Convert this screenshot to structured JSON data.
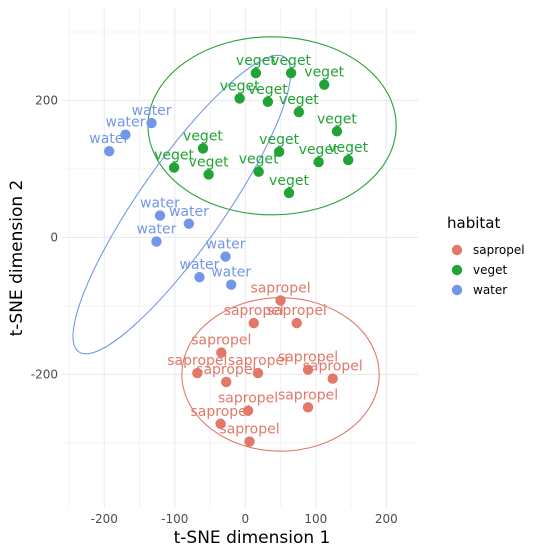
{
  "chart_data": {
    "type": "scatter",
    "xlabel": "t-SNE dimension 1",
    "ylabel": "t-SNE dimension 2",
    "xlim": [
      -260,
      245
    ],
    "ylim": [
      -395,
      335
    ],
    "xticks": [
      -200,
      -100,
      0,
      100,
      200
    ],
    "yticks": [
      -200,
      0,
      200
    ],
    "grid": true,
    "legend_title": "habitat",
    "legend_position": "right",
    "series": [
      {
        "name": "sapropel",
        "color": "#E27869",
        "points": [
          {
            "x": 50,
            "y": -92
          },
          {
            "x": 12,
            "y": -125
          },
          {
            "x": 73,
            "y": -125
          },
          {
            "x": -34,
            "y": -168
          },
          {
            "x": 18,
            "y": -198
          },
          {
            "x": -68,
            "y": -198
          },
          {
            "x": -27,
            "y": -211
          },
          {
            "x": 89,
            "y": -193
          },
          {
            "x": 124,
            "y": -206
          },
          {
            "x": 89,
            "y": -248
          },
          {
            "x": 4,
            "y": -253
          },
          {
            "x": -35,
            "y": -272
          },
          {
            "x": 6,
            "y": -298
          }
        ],
        "ellipse": {
          "cx": 50,
          "cy": -200,
          "rx": 140,
          "ry": 112,
          "angle": 0
        }
      },
      {
        "name": "veget",
        "color": "#22A336",
        "points": [
          {
            "x": 15,
            "y": 240
          },
          {
            "x": 65,
            "y": 240
          },
          {
            "x": 112,
            "y": 223
          },
          {
            "x": -8,
            "y": 203
          },
          {
            "x": 32,
            "y": 198
          },
          {
            "x": 76,
            "y": 183
          },
          {
            "x": 130,
            "y": 155
          },
          {
            "x": -60,
            "y": 130
          },
          {
            "x": 48,
            "y": 125
          },
          {
            "x": 104,
            "y": 110
          },
          {
            "x": 146,
            "y": 113
          },
          {
            "x": -101,
            "y": 102
          },
          {
            "x": -52,
            "y": 92
          },
          {
            "x": 19,
            "y": 96
          },
          {
            "x": 62,
            "y": 65
          }
        ],
        "ellipse": {
          "cx": 38,
          "cy": 163,
          "rx": 176,
          "ry": 130,
          "angle": 0
        }
      },
      {
        "name": "water",
        "color": "#7397E8",
        "points": [
          {
            "x": -133,
            "y": 167
          },
          {
            "x": -170,
            "y": 150
          },
          {
            "x": -193,
            "y": 126
          },
          {
            "x": -121,
            "y": 32
          },
          {
            "x": -80,
            "y": 20
          },
          {
            "x": -126,
            "y": -6
          },
          {
            "x": -28,
            "y": -28
          },
          {
            "x": -65,
            "y": -58
          },
          {
            "x": -20,
            "y": -69
          }
        ],
        "ellipse": {
          "cx": -90,
          "cy": 48,
          "rx": 255,
          "ry": 62,
          "angle": -55
        }
      }
    ]
  }
}
